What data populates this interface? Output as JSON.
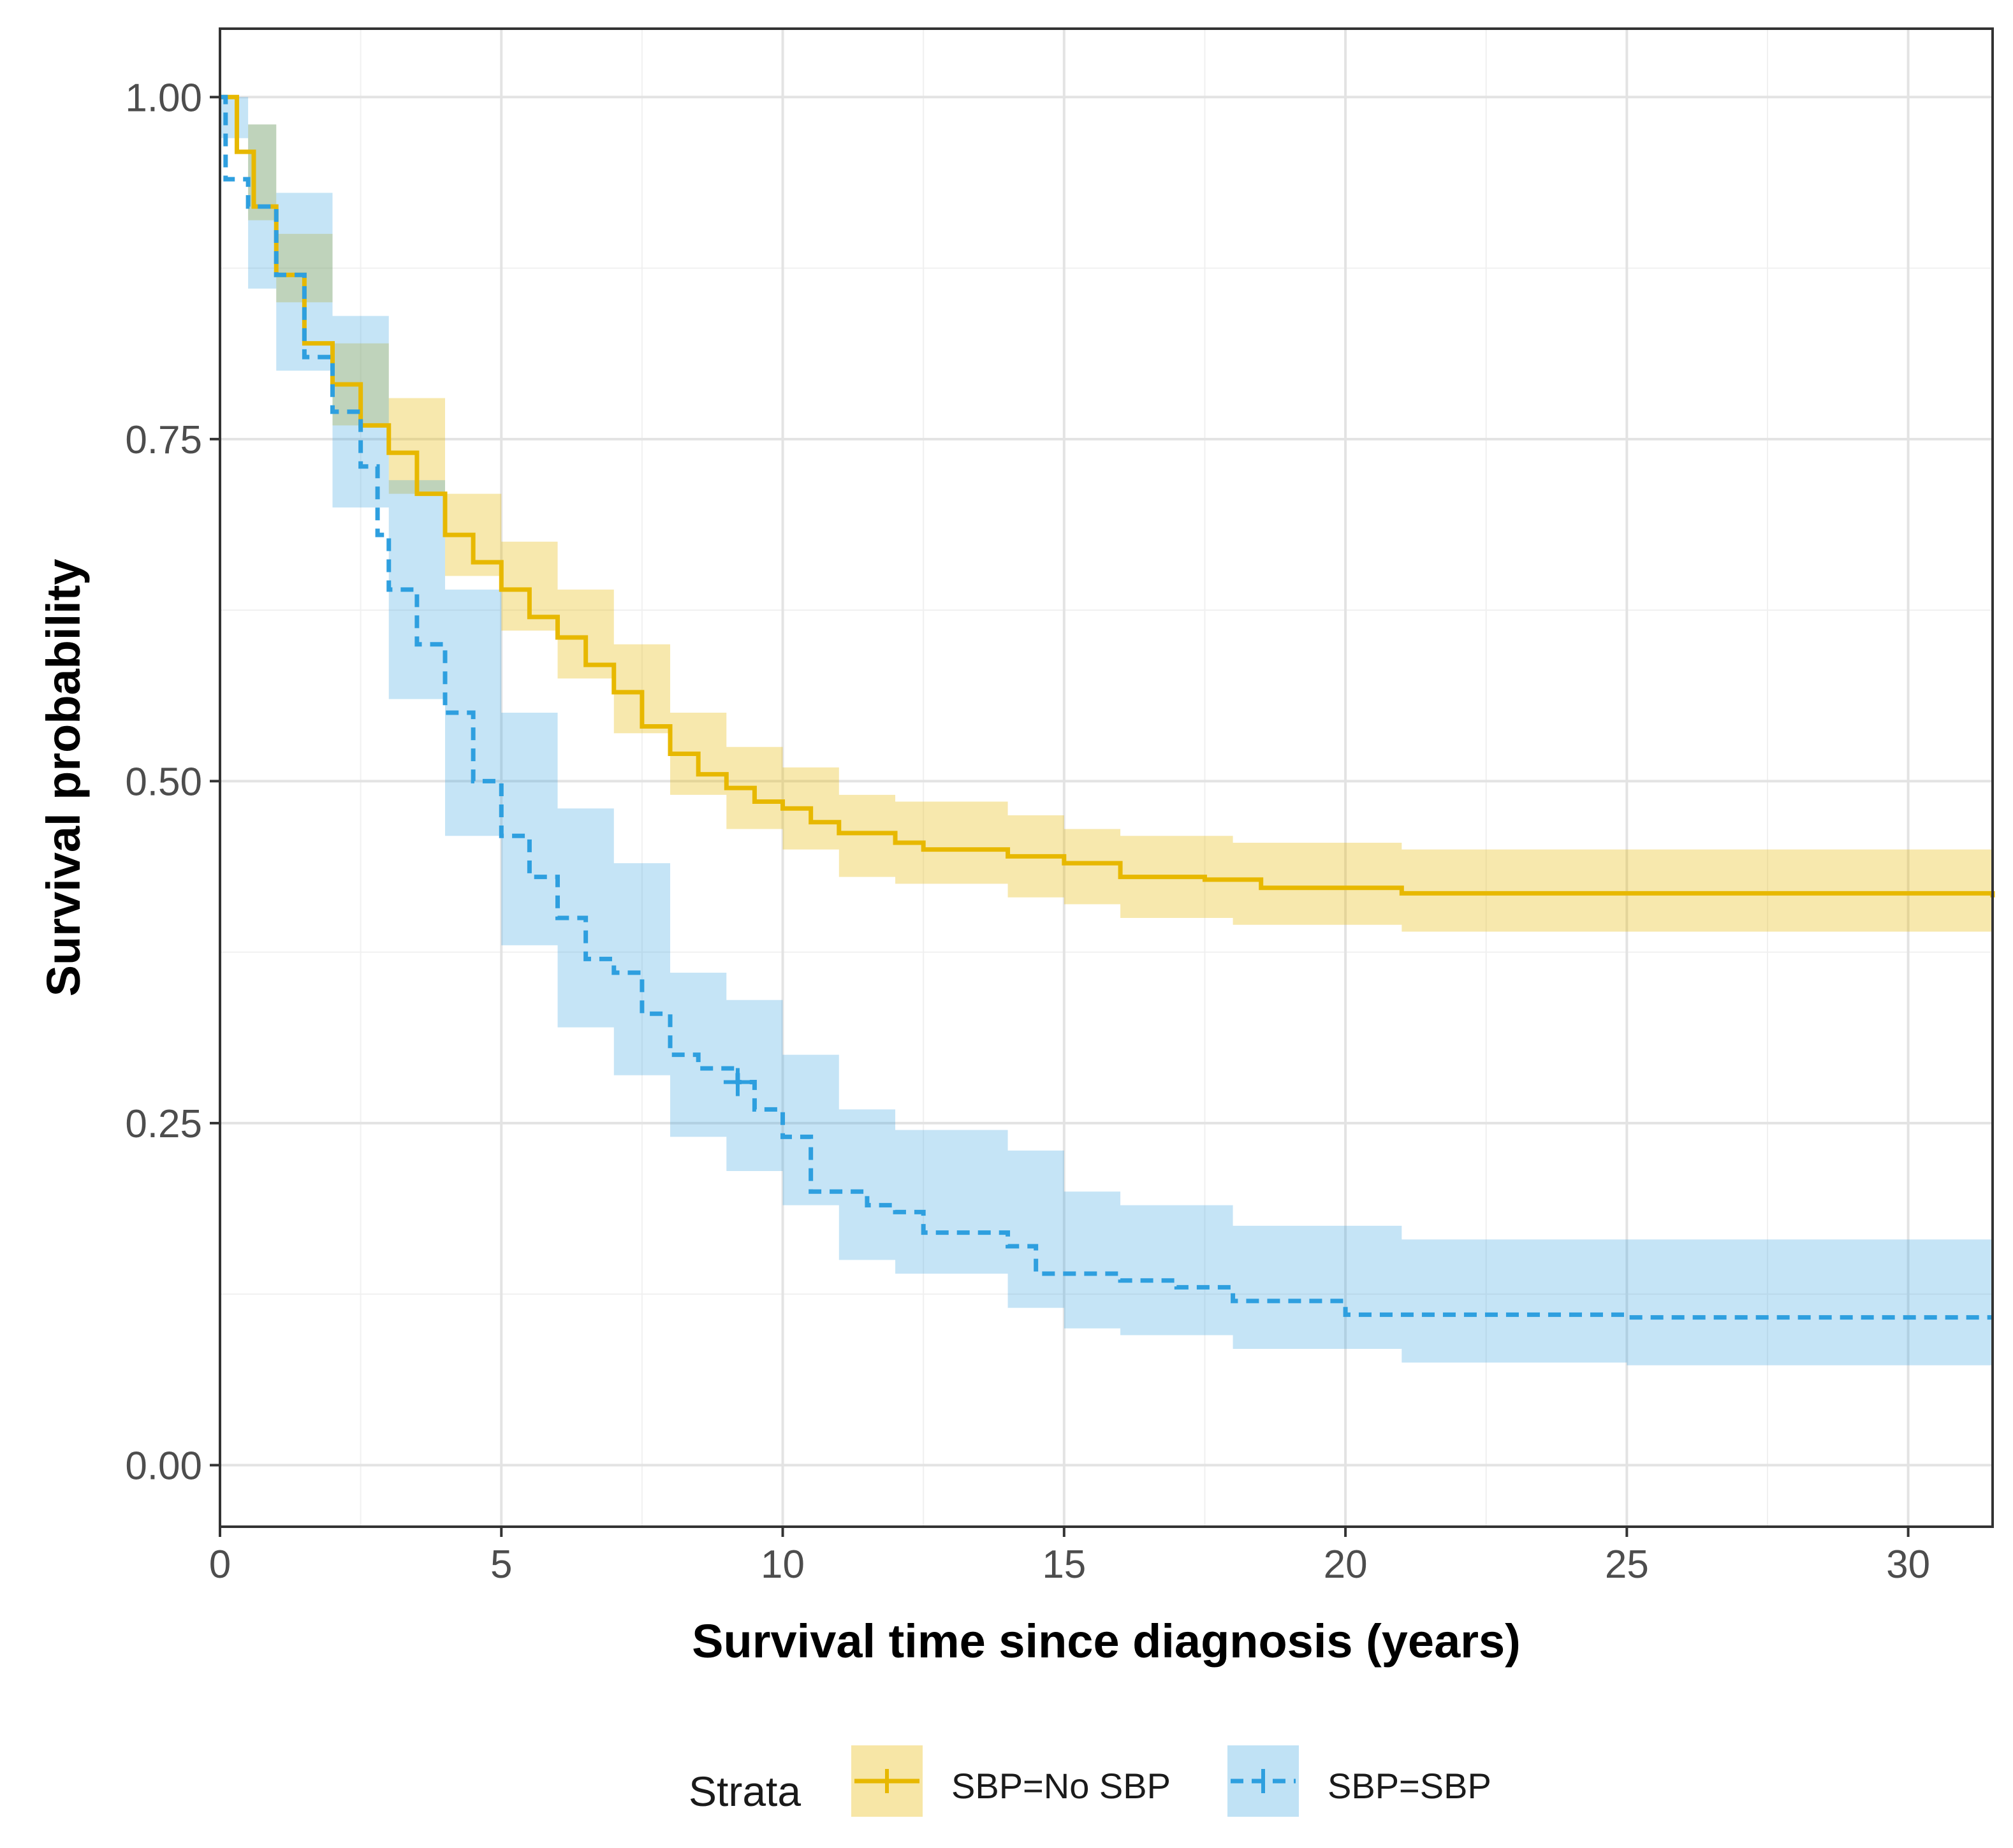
{
  "chart_data": {
    "type": "line",
    "subtype": "kaplan-meier survival curve with confidence bands",
    "xlabel": "Survival time since diagnosis (years)",
    "ylabel": "Survival probability",
    "xlim": [
      0,
      31.5
    ],
    "ylim": [
      -0.045,
      1.05
    ],
    "x_ticks": [
      0,
      5,
      10,
      15,
      20,
      25,
      30
    ],
    "x_tick_labels": [
      "0",
      "5",
      "10",
      "15",
      "20",
      "25",
      "30"
    ],
    "y_ticks": [
      0,
      0.25,
      0.5,
      0.75,
      1
    ],
    "y_tick_labels": [
      "0.00",
      "0.25",
      "0.50",
      "0.75",
      "1.00"
    ],
    "grid": true,
    "legend": {
      "title": "Strata",
      "placement": "bottom",
      "entries": [
        "SBP=No SBP",
        "SBP=SBP"
      ]
    },
    "series": [
      {
        "name": "SBP=No SBP",
        "color": "#E7B800",
        "line_style": "solid",
        "points": [
          [
            0,
            1.0
          ],
          [
            0.3,
            0.96
          ],
          [
            0.6,
            0.92
          ],
          [
            1.0,
            0.87
          ],
          [
            1.5,
            0.82
          ],
          [
            2.0,
            0.79
          ],
          [
            2.5,
            0.76
          ],
          [
            3.0,
            0.74
          ],
          [
            3.5,
            0.71
          ],
          [
            4.0,
            0.68
          ],
          [
            4.5,
            0.66
          ],
          [
            5.0,
            0.64
          ],
          [
            5.5,
            0.62
          ],
          [
            6.0,
            0.605
          ],
          [
            6.5,
            0.585
          ],
          [
            7.0,
            0.565
          ],
          [
            7.5,
            0.54
          ],
          [
            8.0,
            0.52
          ],
          [
            8.5,
            0.505
          ],
          [
            9.0,
            0.495
          ],
          [
            9.5,
            0.485
          ],
          [
            10.0,
            0.48
          ],
          [
            10.5,
            0.47
          ],
          [
            11.0,
            0.462
          ],
          [
            12.0,
            0.455
          ],
          [
            12.5,
            0.45
          ],
          [
            14.0,
            0.445
          ],
          [
            15.0,
            0.44
          ],
          [
            16.0,
            0.43
          ],
          [
            17.5,
            0.428
          ],
          [
            18.5,
            0.422
          ],
          [
            21.0,
            0.418
          ],
          [
            25.0,
            0.418
          ],
          [
            30.0,
            0.418
          ],
          [
            31.5,
            0.415
          ]
        ],
        "lower": [
          [
            0,
            1.0
          ],
          [
            0.5,
            0.91
          ],
          [
            1.0,
            0.85
          ],
          [
            2.0,
            0.76
          ],
          [
            3.0,
            0.71
          ],
          [
            4.0,
            0.65
          ],
          [
            5.0,
            0.61
          ],
          [
            6.0,
            0.575
          ],
          [
            7.0,
            0.535
          ],
          [
            8.0,
            0.49
          ],
          [
            9.0,
            0.465
          ],
          [
            10.0,
            0.45
          ],
          [
            11.0,
            0.43
          ],
          [
            12.0,
            0.425
          ],
          [
            14.0,
            0.415
          ],
          [
            15.0,
            0.41
          ],
          [
            16.0,
            0.4
          ],
          [
            18.0,
            0.395
          ],
          [
            21.0,
            0.39
          ],
          [
            25.0,
            0.39
          ],
          [
            31.5,
            0.385
          ]
        ],
        "upper": [
          [
            0,
            1.0
          ],
          [
            0.5,
            0.98
          ],
          [
            1.0,
            0.9
          ],
          [
            2.0,
            0.82
          ],
          [
            3.0,
            0.78
          ],
          [
            4.0,
            0.71
          ],
          [
            5.0,
            0.675
          ],
          [
            6.0,
            0.64
          ],
          [
            7.0,
            0.6
          ],
          [
            8.0,
            0.55
          ],
          [
            9.0,
            0.525
          ],
          [
            10.0,
            0.51
          ],
          [
            11.0,
            0.49
          ],
          [
            12.0,
            0.485
          ],
          [
            14.0,
            0.475
          ],
          [
            15.0,
            0.465
          ],
          [
            16.0,
            0.46
          ],
          [
            18.0,
            0.455
          ],
          [
            21.0,
            0.45
          ],
          [
            25.0,
            0.45
          ],
          [
            31.5,
            0.447
          ]
        ],
        "censor_marks": []
      },
      {
        "name": "SBP=SBP",
        "color": "#2E9FDF",
        "line_style": "dashed",
        "points": [
          [
            0,
            1.0
          ],
          [
            0.1,
            0.94
          ],
          [
            0.5,
            0.92
          ],
          [
            1.0,
            0.87
          ],
          [
            1.5,
            0.81
          ],
          [
            2.0,
            0.77
          ],
          [
            2.5,
            0.73
          ],
          [
            2.8,
            0.68
          ],
          [
            3.0,
            0.64
          ],
          [
            3.5,
            0.6
          ],
          [
            4.0,
            0.55
          ],
          [
            4.5,
            0.5
          ],
          [
            5.0,
            0.46
          ],
          [
            5.5,
            0.43
          ],
          [
            6.0,
            0.4
          ],
          [
            6.5,
            0.37
          ],
          [
            7.0,
            0.36
          ],
          [
            7.5,
            0.33
          ],
          [
            8.0,
            0.3
          ],
          [
            8.5,
            0.29
          ],
          [
            9.2,
            0.28
          ],
          [
            9.5,
            0.26
          ],
          [
            10.0,
            0.24
          ],
          [
            10.5,
            0.2
          ],
          [
            11.0,
            0.2
          ],
          [
            11.5,
            0.19
          ],
          [
            12.0,
            0.185
          ],
          [
            12.5,
            0.17
          ],
          [
            14.0,
            0.16
          ],
          [
            14.5,
            0.14
          ],
          [
            16.0,
            0.135
          ],
          [
            17.0,
            0.13
          ],
          [
            18.0,
            0.12
          ],
          [
            19.0,
            0.12
          ],
          [
            20.0,
            0.11
          ],
          [
            21.0,
            0.11
          ],
          [
            25.0,
            0.108
          ],
          [
            31.5,
            0.108
          ]
        ],
        "lower": [
          [
            0,
            0.97
          ],
          [
            0.5,
            0.86
          ],
          [
            1.0,
            0.8
          ],
          [
            2.0,
            0.7
          ],
          [
            3.0,
            0.56
          ],
          [
            4.0,
            0.46
          ],
          [
            5.0,
            0.38
          ],
          [
            6.0,
            0.32
          ],
          [
            7.0,
            0.285
          ],
          [
            8.0,
            0.24
          ],
          [
            9.0,
            0.215
          ],
          [
            10.0,
            0.19
          ],
          [
            11.0,
            0.15
          ],
          [
            12.0,
            0.14
          ],
          [
            14.0,
            0.115
          ],
          [
            15.0,
            0.1
          ],
          [
            16.0,
            0.095
          ],
          [
            18.0,
            0.085
          ],
          [
            21.0,
            0.075
          ],
          [
            25.0,
            0.073
          ],
          [
            31.5,
            0.073
          ]
        ],
        "upper": [
          [
            0,
            1.0
          ],
          [
            0.5,
            0.98
          ],
          [
            1.0,
            0.93
          ],
          [
            2.0,
            0.84
          ],
          [
            3.0,
            0.72
          ],
          [
            4.0,
            0.64
          ],
          [
            5.0,
            0.55
          ],
          [
            6.0,
            0.48
          ],
          [
            7.0,
            0.44
          ],
          [
            8.0,
            0.36
          ],
          [
            9.0,
            0.34
          ],
          [
            10.0,
            0.3
          ],
          [
            11.0,
            0.26
          ],
          [
            12.0,
            0.245
          ],
          [
            14.0,
            0.23
          ],
          [
            15.0,
            0.2
          ],
          [
            16.0,
            0.19
          ],
          [
            18.0,
            0.175
          ],
          [
            21.0,
            0.165
          ],
          [
            25.0,
            0.165
          ],
          [
            31.5,
            0.165
          ]
        ],
        "censor_marks": [
          [
            9.2,
            0.28
          ]
        ]
      }
    ]
  }
}
